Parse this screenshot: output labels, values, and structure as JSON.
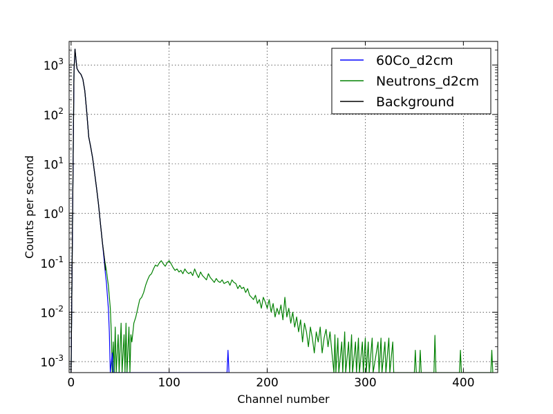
{
  "chart_data": {
    "type": "line",
    "title": "",
    "xlabel": "Channel number",
    "ylabel": "Counts per second",
    "xlim": [
      -2,
      435
    ],
    "ylim": [
      0.0006,
      3000
    ],
    "yscale": "log",
    "grid": true,
    "legend_position": "top-right",
    "x_ticks": [
      "0",
      "100",
      "200",
      "300",
      "400"
    ],
    "y_ticks": [
      {
        "base": "10",
        "exp": "3"
      },
      {
        "base": "10",
        "exp": "2"
      },
      {
        "base": "10",
        "exp": "1"
      },
      {
        "base": "10",
        "exp": "0"
      },
      {
        "base": "10",
        "exp": "-1"
      },
      {
        "base": "10",
        "exp": "-2"
      },
      {
        "base": "10",
        "exp": "-3"
      }
    ],
    "series": [
      {
        "name": "60Co_d2cm",
        "color": "#0000ff",
        "points": [
          [
            0,
            0.0006
          ],
          [
            3,
            800
          ],
          [
            4,
            2100
          ],
          [
            5,
            1300
          ],
          [
            6,
            850
          ],
          [
            8,
            720
          ],
          [
            10,
            650
          ],
          [
            12,
            520
          ],
          [
            14,
            300
          ],
          [
            16,
            110
          ],
          [
            18,
            35
          ],
          [
            20,
            22
          ],
          [
            22,
            13
          ],
          [
            24,
            6.5
          ],
          [
            26,
            3.2
          ],
          [
            28,
            1.5
          ],
          [
            30,
            0.6
          ],
          [
            32,
            0.25
          ],
          [
            34,
            0.1
          ],
          [
            35,
            0.06
          ],
          [
            36,
            0.04
          ],
          [
            37,
            0.022
          ],
          [
            38,
            0.012
          ],
          [
            39,
            0.004
          ],
          [
            40,
            0.0006
          ],
          [
            42,
            0.0015
          ],
          [
            43,
            0.0006
          ],
          [
            159,
            0.0006
          ],
          [
            160,
            0.0017
          ],
          [
            161,
            0.0006
          ]
        ]
      },
      {
        "name": "Neutrons_d2cm",
        "color": "#008000",
        "points": [
          [
            0,
            0.0006
          ],
          [
            3,
            800
          ],
          [
            4,
            2100
          ],
          [
            5,
            1300
          ],
          [
            6,
            850
          ],
          [
            8,
            720
          ],
          [
            10,
            650
          ],
          [
            12,
            520
          ],
          [
            14,
            300
          ],
          [
            16,
            110
          ],
          [
            18,
            35
          ],
          [
            20,
            22
          ],
          [
            22,
            13
          ],
          [
            24,
            6.5
          ],
          [
            26,
            3.2
          ],
          [
            28,
            1.5
          ],
          [
            30,
            0.6
          ],
          [
            32,
            0.25
          ],
          [
            34,
            0.12
          ],
          [
            36,
            0.07
          ],
          [
            38,
            0.035
          ],
          [
            40,
            0.012
          ],
          [
            41,
            0.004
          ],
          [
            42,
            0.0006
          ],
          [
            43,
            0.0025
          ],
          [
            44,
            0.0006
          ],
          [
            45,
            0.005
          ],
          [
            46,
            0.0006
          ],
          [
            48,
            0.0035
          ],
          [
            49,
            0.0006
          ],
          [
            51,
            0.006
          ],
          [
            52,
            0.0006
          ],
          [
            54,
            0.0035
          ],
          [
            55,
            0.0006
          ],
          [
            56,
            0.006
          ],
          [
            57,
            0.0006
          ],
          [
            59,
            0.005
          ],
          [
            60,
            0.0006
          ],
          [
            61,
            0.0035
          ],
          [
            62,
            0.0025
          ],
          [
            64,
            0.006
          ],
          [
            66,
            0.008
          ],
          [
            68,
            0.012
          ],
          [
            70,
            0.018
          ],
          [
            72,
            0.02
          ],
          [
            74,
            0.025
          ],
          [
            76,
            0.035
          ],
          [
            78,
            0.045
          ],
          [
            80,
            0.055
          ],
          [
            82,
            0.06
          ],
          [
            84,
            0.075
          ],
          [
            86,
            0.09
          ],
          [
            88,
            0.085
          ],
          [
            90,
            0.1
          ],
          [
            92,
            0.11
          ],
          [
            94,
            0.095
          ],
          [
            96,
            0.085
          ],
          [
            98,
            0.1
          ],
          [
            100,
            0.11
          ],
          [
            102,
            0.095
          ],
          [
            104,
            0.08
          ],
          [
            106,
            0.07
          ],
          [
            108,
            0.075
          ],
          [
            110,
            0.065
          ],
          [
            112,
            0.07
          ],
          [
            114,
            0.06
          ],
          [
            116,
            0.075
          ],
          [
            118,
            0.065
          ],
          [
            120,
            0.06
          ],
          [
            122,
            0.065
          ],
          [
            124,
            0.055
          ],
          [
            126,
            0.075
          ],
          [
            128,
            0.06
          ],
          [
            130,
            0.05
          ],
          [
            132,
            0.065
          ],
          [
            134,
            0.055
          ],
          [
            136,
            0.05
          ],
          [
            138,
            0.045
          ],
          [
            140,
            0.06
          ],
          [
            142,
            0.05
          ],
          [
            144,
            0.045
          ],
          [
            146,
            0.04
          ],
          [
            148,
            0.048
          ],
          [
            150,
            0.042
          ],
          [
            152,
            0.04
          ],
          [
            154,
            0.045
          ],
          [
            156,
            0.038
          ],
          [
            158,
            0.04
          ],
          [
            160,
            0.042
          ],
          [
            162,
            0.035
          ],
          [
            164,
            0.045
          ],
          [
            166,
            0.04
          ],
          [
            168,
            0.038
          ],
          [
            170,
            0.03
          ],
          [
            172,
            0.035
          ],
          [
            174,
            0.03
          ],
          [
            176,
            0.032
          ],
          [
            178,
            0.025
          ],
          [
            180,
            0.03
          ],
          [
            182,
            0.022
          ],
          [
            184,
            0.02
          ],
          [
            186,
            0.018
          ],
          [
            188,
            0.022
          ],
          [
            190,
            0.015
          ],
          [
            192,
            0.018
          ],
          [
            194,
            0.012
          ],
          [
            196,
            0.02
          ],
          [
            198,
            0.016
          ],
          [
            200,
            0.012
          ],
          [
            202,
            0.018
          ],
          [
            204,
            0.01
          ],
          [
            206,
            0.015
          ],
          [
            208,
            0.008
          ],
          [
            210,
            0.012
          ],
          [
            212,
            0.009
          ],
          [
            214,
            0.014
          ],
          [
            216,
            0.007
          ],
          [
            218,
            0.02
          ],
          [
            220,
            0.008
          ],
          [
            222,
            0.012
          ],
          [
            224,
            0.006
          ],
          [
            226,
            0.01
          ],
          [
            228,
            0.005
          ],
          [
            230,
            0.008
          ],
          [
            232,
            0.004
          ],
          [
            234,
            0.007
          ],
          [
            236,
            0.0025
          ],
          [
            238,
            0.006
          ],
          [
            240,
            0.004
          ],
          [
            242,
            0.002
          ],
          [
            244,
            0.005
          ],
          [
            246,
            0.003
          ],
          [
            248,
            0.0015
          ],
          [
            250,
            0.004
          ],
          [
            252,
            0.0025
          ],
          [
            254,
            0.005
          ],
          [
            256,
            0.0015
          ],
          [
            258,
            0.003
          ],
          [
            260,
            0.0045
          ],
          [
            262,
            0.002
          ],
          [
            264,
            0.004
          ],
          [
            266,
            0.0015
          ],
          [
            268,
            0.0006
          ],
          [
            269,
            0.0035
          ],
          [
            270,
            0.0006
          ],
          [
            272,
            0.003
          ],
          [
            273,
            0.0006
          ],
          [
            276,
            0.0025
          ],
          [
            277,
            0.0006
          ],
          [
            279,
            0.004
          ],
          [
            280,
            0.0006
          ],
          [
            283,
            0.0025
          ],
          [
            284,
            0.0006
          ],
          [
            286,
            0.0035
          ],
          [
            287,
            0.0006
          ],
          [
            290,
            0.0025
          ],
          [
            291,
            0.0006
          ],
          [
            293,
            0.003
          ],
          [
            294,
            0.0006
          ],
          [
            297,
            0.0025
          ],
          [
            298,
            0.0006
          ],
          [
            300,
            0.003
          ],
          [
            301,
            0.0006
          ],
          [
            303,
            0.0025
          ],
          [
            304,
            0.0006
          ],
          [
            307,
            0.003
          ],
          [
            308,
            0.0006
          ],
          [
            313,
            0.0025
          ],
          [
            314,
            0.0006
          ],
          [
            316,
            0.003
          ],
          [
            317,
            0.0006
          ],
          [
            320,
            0.0025
          ],
          [
            321,
            0.0006
          ],
          [
            324,
            0.003
          ],
          [
            325,
            0.0006
          ],
          [
            328,
            0.0025
          ],
          [
            329,
            0.0006
          ],
          [
            350,
            0.0006
          ],
          [
            351,
            0.0017
          ],
          [
            352,
            0.0006
          ],
          [
            355,
            0.0006
          ],
          [
            356,
            0.0017
          ],
          [
            357,
            0.0006
          ],
          [
            370,
            0.0006
          ],
          [
            371,
            0.0034
          ],
          [
            372,
            0.0006
          ],
          [
            396,
            0.0006
          ],
          [
            397,
            0.0017
          ],
          [
            398,
            0.0006
          ],
          [
            428,
            0.0006
          ],
          [
            429,
            0.0017
          ],
          [
            430,
            0.0006
          ]
        ]
      },
      {
        "name": "Background",
        "color": "#000000",
        "points": [
          [
            0,
            0.0006
          ],
          [
            3,
            800
          ],
          [
            4,
            2100
          ],
          [
            5,
            1300
          ],
          [
            6,
            850
          ],
          [
            8,
            720
          ],
          [
            10,
            650
          ],
          [
            12,
            520
          ],
          [
            14,
            300
          ],
          [
            16,
            110
          ],
          [
            18,
            35
          ],
          [
            20,
            22
          ],
          [
            22,
            13
          ],
          [
            24,
            6.5
          ],
          [
            26,
            3.2
          ],
          [
            28,
            1.5
          ],
          [
            30,
            0.6
          ],
          [
            32,
            0.25
          ],
          [
            34,
            0.12
          ],
          [
            35,
            0.07
          ]
        ]
      }
    ]
  }
}
